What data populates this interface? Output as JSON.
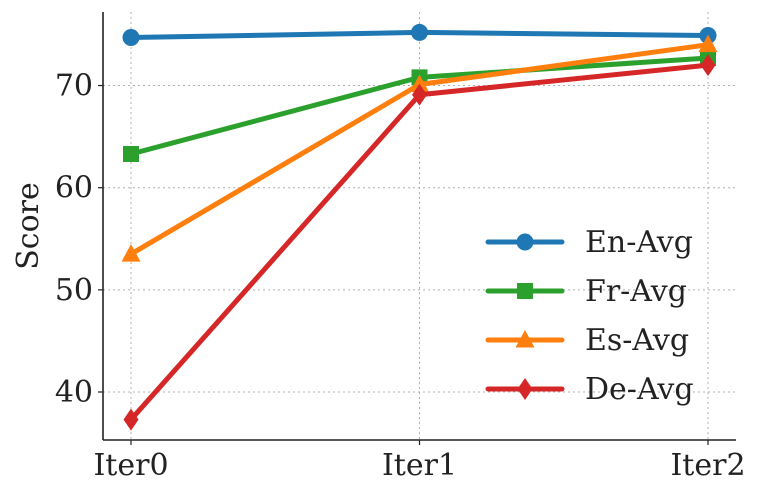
{
  "chart_data": {
    "type": "line",
    "categories": [
      "Iter0",
      "Iter1",
      "Iter2"
    ],
    "ylabel": "Score",
    "xlabel": "",
    "ylim": [
      35.3,
      77.2
    ],
    "yticks": [
      40,
      50,
      60,
      70
    ],
    "grid": true,
    "legend_position": "lower-right",
    "series": [
      {
        "name": "En-Avg",
        "values": [
          74.7,
          75.2,
          74.9
        ],
        "color": "#1f77b4",
        "marker": "circle"
      },
      {
        "name": "Fr-Avg",
        "values": [
          63.3,
          70.8,
          72.7
        ],
        "color": "#2ca02c",
        "marker": "square"
      },
      {
        "name": "Es-Avg",
        "values": [
          53.5,
          70.1,
          74.0
        ],
        "color": "#ff7f0e",
        "marker": "triangle"
      },
      {
        "name": "De-Avg",
        "values": [
          37.3,
          69.1,
          72.0
        ],
        "color": "#d62728",
        "marker": "diamond"
      }
    ]
  }
}
